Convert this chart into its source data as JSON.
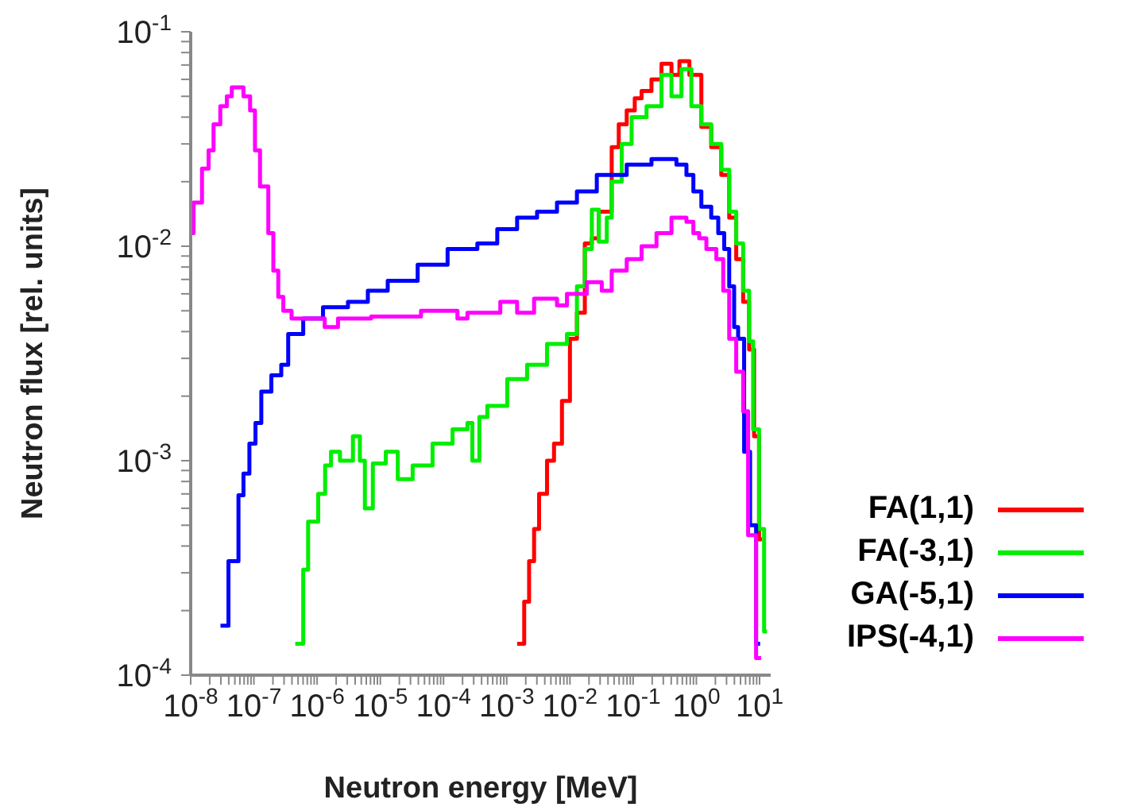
{
  "chart_data": {
    "type": "step",
    "xlabel": "Neutron energy [MeV]",
    "ylabel": "Neutron flux [rel. units]",
    "log": "xy",
    "legend": "bottom right",
    "marker": "none",
    "line_style": "solid",
    "xlim": [
      1e-08,
      15
    ],
    "ylim": [
      0.0001,
      0.1
    ],
    "xticks": [
      {
        "value": 1e-08,
        "label": "10$^{-8}$"
      },
      {
        "value": 2e-08,
        "label": null
      },
      {
        "value": 3e-08,
        "label": null
      },
      {
        "value": 4e-08,
        "label": null
      },
      {
        "value": 5e-08,
        "label": null
      },
      {
        "value": 6e-08,
        "label": null
      },
      {
        "value": 7e-08,
        "label": null
      },
      {
        "value": 8e-08,
        "label": null
      },
      {
        "value": 9e-08,
        "label": null
      },
      {
        "value": 1e-07,
        "label": "10$^{-7}$"
      },
      {
        "value": 2e-07,
        "label": null
      },
      {
        "value": 3e-07,
        "label": null
      },
      {
        "value": 4e-07,
        "label": null
      },
      {
        "value": 5e-07,
        "label": null
      },
      {
        "value": 6e-07,
        "label": null
      },
      {
        "value": 7e-07,
        "label": null
      },
      {
        "value": 8e-07,
        "label": null
      },
      {
        "value": 9e-07,
        "label": null
      },
      {
        "value": 1e-06,
        "label": "10$^{-6}$"
      },
      {
        "value": 2e-06,
        "label": null
      },
      {
        "value": 3e-06,
        "label": null
      },
      {
        "value": 4e-06,
        "label": null
      },
      {
        "value": 5e-06,
        "label": null
      },
      {
        "value": 6e-06,
        "label": null
      },
      {
        "value": 7e-06,
        "label": null
      },
      {
        "value": 8e-06,
        "label": null
      },
      {
        "value": 9e-06,
        "label": null
      },
      {
        "value": 1e-05,
        "label": "10$^{-5}$"
      },
      {
        "value": 2e-05,
        "label": null
      },
      {
        "value": 3e-05,
        "label": null
      },
      {
        "value": 4e-05,
        "label": null
      },
      {
        "value": 5e-05,
        "label": null
      },
      {
        "value": 6e-05,
        "label": null
      },
      {
        "value": 7e-05,
        "label": null
      },
      {
        "value": 8e-05,
        "label": null
      },
      {
        "value": 9e-05,
        "label": null
      },
      {
        "value": 0.0001,
        "label": "10$^{-4}$"
      },
      {
        "value": 0.0002,
        "label": null
      },
      {
        "value": 0.0003,
        "label": null
      },
      {
        "value": 0.0004,
        "label": null
      },
      {
        "value": 0.0005,
        "label": null
      },
      {
        "value": 0.0006,
        "label": null
      },
      {
        "value": 0.0007,
        "label": null
      },
      {
        "value": 0.0008,
        "label": null
      },
      {
        "value": 0.0009,
        "label": null
      },
      {
        "value": 0.001,
        "label": "10$^{-3}$"
      },
      {
        "value": 0.002,
        "label": null
      },
      {
        "value": 0.003,
        "label": null
      },
      {
        "value": 0.004,
        "label": null
      },
      {
        "value": 0.005,
        "label": null
      },
      {
        "value": 0.006,
        "label": null
      },
      {
        "value": 0.007,
        "label": null
      },
      {
        "value": 0.008,
        "label": null
      },
      {
        "value": 0.009,
        "label": null
      },
      {
        "value": 0.01,
        "label": "10$^{-2}$"
      },
      {
        "value": 0.02,
        "label": null
      },
      {
        "value": 0.03,
        "label": null
      },
      {
        "value": 0.04,
        "label": null
      },
      {
        "value": 0.05,
        "label": null
      },
      {
        "value": 0.06,
        "label": null
      },
      {
        "value": 0.07,
        "label": null
      },
      {
        "value": 0.08,
        "label": null
      },
      {
        "value": 0.09,
        "label": null
      },
      {
        "value": 0.1,
        "label": "10$^{-1}$"
      },
      {
        "value": 0.2,
        "label": null
      },
      {
        "value": 0.3,
        "label": null
      },
      {
        "value": 0.4,
        "label": null
      },
      {
        "value": 0.5,
        "label": null
      },
      {
        "value": 0.6,
        "label": null
      },
      {
        "value": 0.7,
        "label": null
      },
      {
        "value": 0.8,
        "label": null
      },
      {
        "value": 0.9,
        "label": null
      },
      {
        "value": 1,
        "label": "10$^{0}$"
      },
      {
        "value": 2,
        "label": null
      },
      {
        "value": 3,
        "label": null
      },
      {
        "value": 4,
        "label": null
      },
      {
        "value": 5,
        "label": null
      },
      {
        "value": 6,
        "label": null
      },
      {
        "value": 7,
        "label": null
      },
      {
        "value": 8,
        "label": null
      },
      {
        "value": 9,
        "label": null
      },
      {
        "value": 10,
        "label": "10$^{1}$"
      }
    ],
    "yticks": [
      {
        "value": 0.0001,
        "label": "10$^{-4}$"
      },
      {
        "value": 0.0002,
        "label": null
      },
      {
        "value": 0.0003,
        "label": null
      },
      {
        "value": 0.0004,
        "label": null
      },
      {
        "value": 0.0005,
        "label": null
      },
      {
        "value": 0.0006,
        "label": null
      },
      {
        "value": 0.0007,
        "label": null
      },
      {
        "value": 0.0008,
        "label": null
      },
      {
        "value": 0.0009,
        "label": null
      },
      {
        "value": 0.001,
        "label": "10$^{-3}$"
      },
      {
        "value": 0.002,
        "label": null
      },
      {
        "value": 0.003,
        "label": null
      },
      {
        "value": 0.004,
        "label": null
      },
      {
        "value": 0.005,
        "label": null
      },
      {
        "value": 0.006,
        "label": null
      },
      {
        "value": 0.007,
        "label": null
      },
      {
        "value": 0.008,
        "label": null
      },
      {
        "value": 0.009,
        "label": null
      },
      {
        "value": 0.01,
        "label": "10$^{-2}$"
      },
      {
        "value": 0.02,
        "label": null
      },
      {
        "value": 0.03,
        "label": null
      },
      {
        "value": 0.04,
        "label": null
      },
      {
        "value": 0.05,
        "label": null
      },
      {
        "value": 0.06,
        "label": null
      },
      {
        "value": 0.07,
        "label": null
      },
      {
        "value": 0.08,
        "label": null
      },
      {
        "value": 0.09,
        "label": null
      },
      {
        "value": 0.1,
        "label": "10$^{-1}$"
      }
    ],
    "series": [
      {
        "name": "FA(1,1)",
        "color": "#ff0000",
        "x": [
          0.00146,
          0.00189,
          0.00226,
          0.00271,
          0.00325,
          0.00434,
          0.0056,
          0.00748,
          0.01,
          0.0129,
          0.0172,
          0.0222,
          0.0286,
          0.0458,
          0.0592,
          0.0791,
          0.106,
          0.136,
          0.195,
          0.281,
          0.404,
          0.54,
          0.776,
          1.2,
          1.72,
          2.48,
          3.31,
          4.27,
          5.5,
          6.84,
          8.19,
          9.82,
          10.9
        ],
        "values": [
          0.00014,
          0.00022,
          0.00034,
          0.00048,
          0.0007,
          0.001,
          0.0012,
          0.0019,
          0.0037,
          0.0049,
          0.0103,
          0.0109,
          0.0145,
          0.029,
          0.037,
          0.043,
          0.049,
          0.053,
          0.06,
          0.071,
          0.063,
          0.073,
          0.063,
          0.036,
          0.029,
          0.0215,
          0.0136,
          0.0087,
          0.0055,
          0.0033,
          0.0013,
          0.00043,
          0.00043
        ]
      },
      {
        "name": "FA(-3,1)",
        "color": "#00ee00",
        "x": [
          4.51e-07,
          6.03e-07,
          7.21e-07,
          1.04e-06,
          1.34e-06,
          1.66e-06,
          2.3e-06,
          3.69e-06,
          4.75e-06,
          5.7e-06,
          7.62e-06,
          1.22e-05,
          1.89e-05,
          3.25e-05,
          6.71e-05,
          0.000139,
          0.000239,
          0.000286,
          0.000369,
          0.000493,
          0.00102,
          0.0021,
          0.00434,
          0.00897,
          0.0129,
          0.0172,
          0.0222,
          0.0286,
          0.0383,
          0.0458,
          0.0659,
          0.0946,
          0.163,
          0.281,
          0.404,
          0.581,
          0.834,
          1.2,
          1.72,
          2.48,
          3.31,
          4.27,
          5.5,
          6.84,
          7.91,
          9.82,
          11.8,
          13.1
        ],
        "values": [
          0.00014,
          0.00031,
          0.00052,
          0.0007,
          0.00095,
          0.0011,
          0.001,
          0.0013,
          0.001,
          0.0006,
          0.00097,
          0.0011,
          0.00082,
          0.00095,
          0.0012,
          0.0014,
          0.0015,
          0.001,
          0.0016,
          0.0018,
          0.0024,
          0.0028,
          0.0035,
          0.0039,
          0.0065,
          0.0097,
          0.0148,
          0.0105,
          0.0136,
          0.02,
          0.03,
          0.04,
          0.045,
          0.063,
          0.05,
          0.067,
          0.045,
          0.037,
          0.03,
          0.0227,
          0.0145,
          0.0103,
          0.0062,
          0.0036,
          0.0014,
          0.00048,
          0.00016,
          0.00016
        ]
      },
      {
        "name": "GA(-5,1)",
        "color": "#0000ff",
        "x": [
          2.96e-08,
          3.96e-08,
          5.7e-08,
          6.84e-08,
          8.49e-08,
          1.06e-07,
          1.31e-07,
          1.89e-07,
          2.71e-07,
          3.49e-07,
          6.03e-07,
          1.24e-06,
          3.08e-06,
          6.35e-06,
          1.31e-05,
          3.9e-05,
          0.000116,
          0.000343,
          0.000708,
          0.00146,
          0.00302,
          0.00624,
          0.0129,
          0.0266,
          0.0791,
          0.195,
          0.484,
          0.697,
          0.897,
          1.2,
          1.72,
          2.22,
          2.76,
          3.31,
          3.96,
          4.58,
          5.7,
          7.08,
          8.81,
          10.2
        ],
        "values": [
          0.00017,
          0.00034,
          0.00069,
          0.00087,
          0.0012,
          0.0015,
          0.0021,
          0.0025,
          0.0028,
          0.0039,
          0.0046,
          0.0052,
          0.0055,
          0.0062,
          0.0069,
          0.0082,
          0.0097,
          0.0103,
          0.012,
          0.0136,
          0.0145,
          0.016,
          0.018,
          0.0215,
          0.024,
          0.0255,
          0.024,
          0.0215,
          0.018,
          0.0153,
          0.0136,
          0.0115,
          0.0097,
          0.0065,
          0.0042,
          0.0037,
          0.0011,
          0.0005,
          0.00014,
          0.00014
        ]
      },
      {
        "name": "IPS(-4,1)",
        "color": "#ff00ff",
        "x": [
          1e-08,
          1.11e-08,
          1.51e-08,
          1.92e-08,
          2.3e-08,
          2.94e-08,
          3.73e-08,
          4.47e-08,
          6.84e-08,
          8.71e-08,
          1.04e-07,
          1.25e-07,
          1.69e-07,
          2.03e-07,
          2.43e-07,
          2.92e-07,
          3.94e-07,
          1.32e-06,
          2.14e-06,
          7.16e-06,
          2.4e-05,
          4.4e-05,
          0.000166,
          0.000239,
          0.000791,
          0.00146,
          0.00271,
          0.00624,
          0.00897,
          0.0185,
          0.0319,
          0.0458,
          0.0791,
          0.136,
          0.234,
          0.404,
          0.697,
          0.897,
          1.11,
          1.44,
          2.07,
          2.66,
          3.31,
          4.27,
          5.5,
          6.59,
          8.81,
          10.6
        ],
        "values": [
          0.0115,
          0.016,
          0.023,
          0.028,
          0.037,
          0.045,
          0.05,
          0.055,
          0.05,
          0.043,
          0.028,
          0.019,
          0.0115,
          0.0077,
          0.0058,
          0.005,
          0.0046,
          0.0042,
          0.0046,
          0.0047,
          0.0047,
          0.005,
          0.0046,
          0.0049,
          0.0055,
          0.0049,
          0.0057,
          0.0053,
          0.006,
          0.0068,
          0.0062,
          0.0077,
          0.0087,
          0.01,
          0.0115,
          0.0136,
          0.013,
          0.0115,
          0.0109,
          0.0097,
          0.0087,
          0.0062,
          0.0037,
          0.0026,
          0.0017,
          0.00045,
          0.00012,
          0.00012
        ]
      }
    ]
  }
}
